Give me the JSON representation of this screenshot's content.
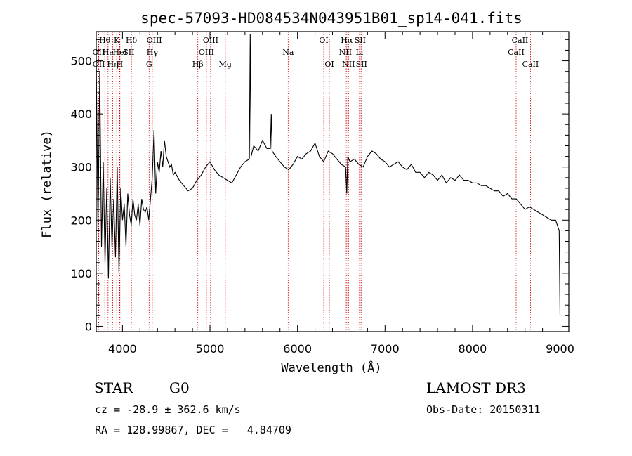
{
  "chart_data": {
    "type": "line",
    "title": "spec-57093-HD084534N043951B01_sp14-041.fits",
    "xlabel": "Wavelength (Å)",
    "ylabel": "Flux (relative)",
    "xlim": [
      3700,
      9100
    ],
    "ylim": [
      -10,
      555
    ],
    "xticks": [
      4000,
      5000,
      6000,
      7000,
      8000,
      9000
    ],
    "yticks": [
      0,
      100,
      200,
      300,
      400,
      500
    ],
    "grid": false,
    "series": [
      {
        "name": "spectrum",
        "x": [
          3700,
          3720,
          3740,
          3760,
          3780,
          3800,
          3820,
          3840,
          3860,
          3880,
          3900,
          3920,
          3940,
          3960,
          3980,
          4000,
          4020,
          4040,
          4060,
          4080,
          4100,
          4120,
          4140,
          4160,
          4180,
          4200,
          4220,
          4240,
          4260,
          4280,
          4300,
          4320,
          4340,
          4360,
          4380,
          4400,
          4420,
          4440,
          4460,
          4480,
          4500,
          4520,
          4540,
          4560,
          4580,
          4600,
          4650,
          4700,
          4750,
          4800,
          4850,
          4900,
          4950,
          5000,
          5050,
          5100,
          5150,
          5200,
          5250,
          5300,
          5350,
          5400,
          5450,
          5460,
          5470,
          5500,
          5550,
          5600,
          5650,
          5690,
          5700,
          5710,
          5750,
          5800,
          5850,
          5900,
          5950,
          6000,
          6050,
          6100,
          6150,
          6200,
          6250,
          6300,
          6350,
          6400,
          6450,
          6500,
          6550,
          6563,
          6575,
          6600,
          6650,
          6700,
          6750,
          6800,
          6850,
          6900,
          6950,
          7000,
          7050,
          7100,
          7150,
          7200,
          7250,
          7300,
          7350,
          7400,
          7450,
          7500,
          7550,
          7600,
          7650,
          7700,
          7750,
          7800,
          7850,
          7900,
          7950,
          8000,
          8050,
          8100,
          8150,
          8200,
          8250,
          8300,
          8350,
          8400,
          8450,
          8500,
          8550,
          8600,
          8650,
          8700,
          8750,
          8800,
          8850,
          8900,
          8950,
          8980,
          8990,
          9000
        ],
        "values": [
          500,
          180,
          480,
          150,
          310,
          120,
          260,
          90,
          280,
          150,
          240,
          130,
          300,
          100,
          260,
          200,
          230,
          150,
          250,
          210,
          190,
          240,
          210,
          200,
          230,
          190,
          240,
          220,
          215,
          225,
          200,
          240,
          280,
          370,
          250,
          310,
          290,
          330,
          300,
          350,
          320,
          310,
          300,
          305,
          285,
          290,
          275,
          265,
          255,
          260,
          275,
          285,
          300,
          310,
          295,
          285,
          280,
          275,
          270,
          285,
          300,
          310,
          315,
          550,
          320,
          340,
          330,
          350,
          335,
          335,
          400,
          330,
          320,
          310,
          300,
          295,
          305,
          320,
          315,
          325,
          330,
          345,
          320,
          310,
          330,
          325,
          315,
          305,
          300,
          250,
          320,
          310,
          315,
          305,
          300,
          320,
          330,
          325,
          315,
          310,
          300,
          305,
          310,
          300,
          295,
          305,
          290,
          290,
          280,
          290,
          285,
          275,
          285,
          270,
          280,
          275,
          285,
          275,
          275,
          270,
          270,
          265,
          265,
          260,
          255,
          255,
          245,
          250,
          240,
          240,
          230,
          220,
          225,
          220,
          215,
          210,
          205,
          200,
          200,
          185,
          180,
          20
        ]
      }
    ],
    "line_labels": [
      {
        "label": "OII",
        "x": 3727,
        "row": 2
      },
      {
        "label": "OII",
        "x": 3729,
        "row": 3
      },
      {
        "label": "Hθ",
        "x": 3798,
        "row": 1
      },
      {
        "label": "He",
        "x": 3835,
        "row": 2
      },
      {
        "label": "Hη",
        "x": 3889,
        "row": 3
      },
      {
        "label": "K",
        "x": 3934,
        "row": 1
      },
      {
        "label": "H",
        "x": 3968,
        "row": 3
      },
      {
        "label": "HeI",
        "x": 3971,
        "row": 2
      },
      {
        "label": "Hδ",
        "x": 4102,
        "row": 1
      },
      {
        "label": "SII",
        "x": 4072,
        "row": 2
      },
      {
        "label": "G",
        "x": 4304,
        "row": 3
      },
      {
        "label": "OIII",
        "x": 4363,
        "row": 1
      },
      {
        "label": "Hγ",
        "x": 4341,
        "row": 2
      },
      {
        "label": "Hβ",
        "x": 4861,
        "row": 3
      },
      {
        "label": "OIII",
        "x": 4959,
        "row": 2
      },
      {
        "label": "OIII",
        "x": 5007,
        "row": 1
      },
      {
        "label": "Mg",
        "x": 5175,
        "row": 3
      },
      {
        "label": "Na",
        "x": 5893,
        "row": 2
      },
      {
        "label": "OI",
        "x": 6300,
        "row": 1
      },
      {
        "label": "OI",
        "x": 6364,
        "row": 3
      },
      {
        "label": "NII",
        "x": 6548,
        "row": 2
      },
      {
        "label": "Hα",
        "x": 6563,
        "row": 1
      },
      {
        "label": "NII",
        "x": 6583,
        "row": 3
      },
      {
        "label": "Li",
        "x": 6708,
        "row": 2
      },
      {
        "label": "SII",
        "x": 6716,
        "row": 1
      },
      {
        "label": "SII",
        "x": 6731,
        "row": 3
      },
      {
        "label": "CaII",
        "x": 8498,
        "row": 2
      },
      {
        "label": "CaII",
        "x": 8542,
        "row": 1
      },
      {
        "label": "CaII",
        "x": 8662,
        "row": 3
      }
    ]
  },
  "info": {
    "class_label": "STAR",
    "subclass": "G0",
    "survey": "LAMOST DR3",
    "cz": "cz = -28.9 ± 362.6 km/s",
    "obs_date": "Obs-Date: 20150311",
    "radec": "RA = 128.99867, DEC =   4.84709"
  },
  "colors": {
    "line": "#000000",
    "marker": "#cc0000"
  }
}
